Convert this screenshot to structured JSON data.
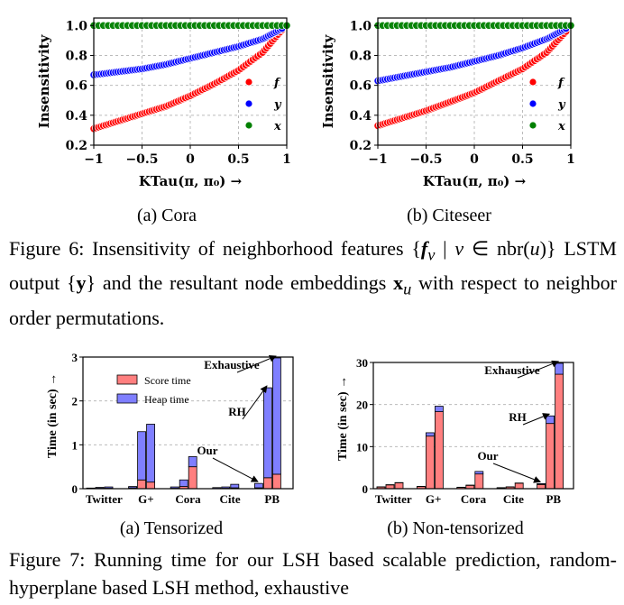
{
  "figure6": {
    "panels": [
      {
        "id": "cora",
        "sublabel": "(a) Cora"
      },
      {
        "id": "citeseer",
        "sublabel": "(b) Citeseer"
      }
    ],
    "ylabel": "Insensitivity",
    "xlabel": "KTau(π, π₀) →",
    "legend": [
      "f",
      "y",
      "x"
    ],
    "caption": "Figure 6: Insensitivity of neighborhood features {f_v | v ∈ nbr(u)} LSTM output {y} and the resultant node embeddings x_u with respect to neighbor order permutations."
  },
  "figure7": {
    "panels": [
      {
        "id": "tensorized",
        "sublabel": "(a) Tensorized"
      },
      {
        "id": "nontensorized",
        "sublabel": "(b) Non-tensorized"
      }
    ],
    "ylabel": "Time (in sec) →",
    "legend": [
      "Score time",
      "Heap time"
    ],
    "annotations": [
      "Exhaustive",
      "RH",
      "Our"
    ],
    "caption": "Figure 7: Running time for our LSH based scalable prediction, random-hyperplane based LSH method, exhaustive"
  },
  "chart_data": [
    {
      "type": "scatter",
      "panel": "(a) Cora",
      "xlim": [
        -1,
        1
      ],
      "ylim": [
        0.2,
        1.05
      ],
      "xticks": [
        -1,
        -0.5,
        0,
        0.5,
        1
      ],
      "yticks": [
        0.2,
        0.4,
        0.6,
        0.8,
        1.0
      ],
      "xlabel": "KTau(π, π₀) →",
      "ylabel": "Insensitivity",
      "series": [
        {
          "name": "f",
          "color": "#ff0000",
          "points": [
            [
              -1,
              0.31
            ],
            [
              -0.75,
              0.36
            ],
            [
              -0.5,
              0.41
            ],
            [
              -0.25,
              0.46
            ],
            [
              0,
              0.53
            ],
            [
              0.25,
              0.61
            ],
            [
              0.5,
              0.7
            ],
            [
              0.75,
              0.82
            ],
            [
              0.95,
              0.97
            ]
          ]
        },
        {
          "name": "y",
          "color": "#0000ff",
          "points": [
            [
              -1,
              0.67
            ],
            [
              -0.75,
              0.69
            ],
            [
              -0.5,
              0.71
            ],
            [
              -0.25,
              0.74
            ],
            [
              0,
              0.78
            ],
            [
              0.25,
              0.82
            ],
            [
              0.5,
              0.86
            ],
            [
              0.75,
              0.91
            ],
            [
              0.95,
              0.98
            ]
          ]
        },
        {
          "name": "x",
          "color": "#008000",
          "points": [
            [
              -1,
              1.0
            ],
            [
              -0.5,
              1.0
            ],
            [
              0,
              1.0
            ],
            [
              0.5,
              1.0
            ],
            [
              1,
              1.0
            ]
          ]
        }
      ],
      "legend": "right"
    },
    {
      "type": "scatter",
      "panel": "(b) Citeseer",
      "xlim": [
        -1,
        1
      ],
      "ylim": [
        0.2,
        1.05
      ],
      "xticks": [
        -1,
        -0.5,
        0,
        0.5,
        1
      ],
      "yticks": [
        0.2,
        0.4,
        0.6,
        0.8,
        1.0
      ],
      "xlabel": "KTau(π, π₀) →",
      "ylabel": "Insensitivity",
      "series": [
        {
          "name": "f",
          "color": "#ff0000",
          "points": [
            [
              -1,
              0.33
            ],
            [
              -0.75,
              0.38
            ],
            [
              -0.5,
              0.43
            ],
            [
              -0.25,
              0.49
            ],
            [
              0,
              0.55
            ],
            [
              0.25,
              0.63
            ],
            [
              0.5,
              0.71
            ],
            [
              0.75,
              0.82
            ],
            [
              0.95,
              0.96
            ]
          ]
        },
        {
          "name": "y",
          "color": "#0000ff",
          "points": [
            [
              -1,
              0.63
            ],
            [
              -0.75,
              0.66
            ],
            [
              -0.5,
              0.69
            ],
            [
              -0.25,
              0.72
            ],
            [
              0,
              0.76
            ],
            [
              0.25,
              0.8
            ],
            [
              0.5,
              0.85
            ],
            [
              0.75,
              0.91
            ],
            [
              0.95,
              0.98
            ]
          ]
        },
        {
          "name": "x",
          "color": "#008000",
          "points": [
            [
              -1,
              1.0
            ],
            [
              -0.5,
              1.0
            ],
            [
              0,
              1.0
            ],
            [
              0.5,
              1.0
            ],
            [
              1,
              1.0
            ]
          ]
        }
      ],
      "legend": "right"
    },
    {
      "type": "bar",
      "panel": "(a) Tensorized",
      "stacked": true,
      "categories": [
        "Twitter",
        "G+",
        "Cora",
        "Cite",
        "PB"
      ],
      "ylim": [
        0,
        3
      ],
      "yticks": [
        0,
        1,
        2,
        3
      ],
      "ylabel": "Time (in sec) →",
      "groups": [
        [
          [
            0.005,
            0.01
          ],
          [
            0.01,
            0.02
          ],
          [
            0.01,
            0.03
          ]
        ],
        [
          [
            0.02,
            0.03
          ],
          [
            0.2,
            1.1
          ],
          [
            0.15,
            1.32
          ]
        ],
        [
          [
            0.01,
            0.03
          ],
          [
            0.05,
            0.15
          ],
          [
            0.5,
            0.23
          ]
        ],
        [
          [
            0.005,
            0.02
          ],
          [
            0.01,
            0.03
          ],
          [
            0.02,
            0.08
          ]
        ],
        [
          [
            0.02,
            0.1
          ],
          [
            0.25,
            2.05
          ],
          [
            0.33,
            2.65
          ]
        ]
      ],
      "group_note": "each category: [Our, RH, Exhaustive] as [score, heap]",
      "series": [
        {
          "name": "Score time",
          "color": "#ff7f7f"
        },
        {
          "name": "Heap time",
          "color": "#7f7fff"
        }
      ],
      "annotations": [
        "Exhaustive",
        "RH",
        "Our"
      ]
    },
    {
      "type": "bar",
      "panel": "(b) Non-tensorized",
      "stacked": true,
      "categories": [
        "Twitter",
        "G+",
        "Cora",
        "Cite",
        "PB"
      ],
      "ylim": [
        0,
        30
      ],
      "yticks": [
        0,
        10,
        20,
        30
      ],
      "ylabel": "Time (in sec) →",
      "groups": [
        [
          [
            0.4,
            0.05
          ],
          [
            0.9,
            0.05
          ],
          [
            1.4,
            0.05
          ]
        ],
        [
          [
            0.5,
            0.05
          ],
          [
            12.5,
            0.8
          ],
          [
            18.3,
            1.3
          ]
        ],
        [
          [
            0.3,
            0.05
          ],
          [
            0.8,
            0.05
          ],
          [
            3.5,
            0.6
          ]
        ],
        [
          [
            0.2,
            0.05
          ],
          [
            0.4,
            0.05
          ],
          [
            1.3,
            0.05
          ]
        ],
        [
          [
            1.0,
            0.2
          ],
          [
            15.5,
            1.8
          ],
          [
            27.2,
            2.6
          ]
        ]
      ],
      "group_note": "each category: [Our, RH, Exhaustive] as [score, heap]",
      "series": [
        {
          "name": "Score time",
          "color": "#ff7f7f"
        },
        {
          "name": "Heap time",
          "color": "#7f7fff"
        }
      ],
      "annotations": [
        "Exhaustive",
        "RH",
        "Our"
      ]
    }
  ]
}
